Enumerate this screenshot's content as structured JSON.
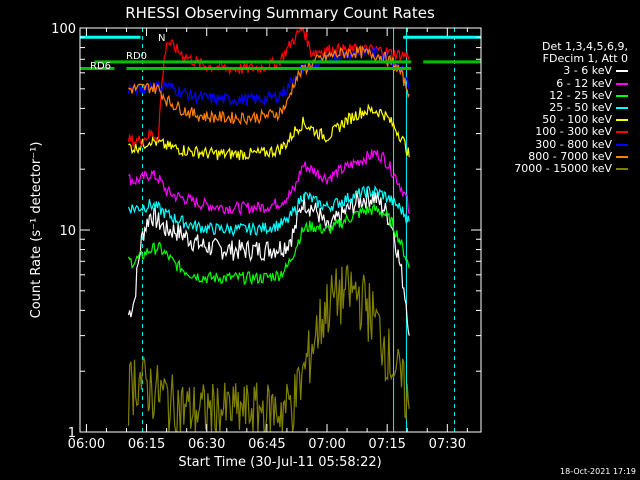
{
  "chart_data": {
    "type": "line",
    "title": "RHESSI Observing Summary Count Rates",
    "xlabel": "Start Time (30-Jul-11 05:58:22)",
    "ylabel": "Count Rate (s⁻¹ detector⁻¹)",
    "x_ticks": [
      "06:00",
      "06:15",
      "06:30",
      "06:45",
      "07:00",
      "07:15",
      "07:30"
    ],
    "x_tick_minutes": [
      0,
      15,
      30,
      45,
      60,
      75,
      90
    ],
    "xlim_minutes": [
      -1.6,
      98.4
    ],
    "y_ticks": [
      "1",
      "10",
      "100"
    ],
    "y_tick_values": [
      1,
      10,
      100
    ],
    "ylim": [
      1,
      100
    ],
    "y_scale": "log",
    "legend_header": [
      "Det 1,3,4,5,6,9,",
      "FDecim 1, Att 0"
    ],
    "series": [
      {
        "name": "3 - 6 keV",
        "color": "#ffffff",
        "x": [
          10.5,
          12,
          14,
          16,
          18,
          20,
          22,
          24,
          26,
          28,
          30,
          33,
          36,
          40,
          44,
          48,
          50,
          52,
          54,
          56,
          58,
          60,
          62,
          64,
          66,
          68,
          70,
          72,
          74,
          76,
          78,
          80,
          80.5
        ],
        "y": [
          3.8,
          4.5,
          9.5,
          12,
          11,
          10,
          10,
          9.5,
          9,
          8.5,
          8.3,
          8.1,
          8.0,
          8.0,
          8.0,
          8.2,
          8.5,
          10,
          14,
          13,
          12,
          10,
          11,
          12,
          13,
          14,
          14.5,
          14.5,
          13,
          11,
          7,
          4,
          3
        ]
      },
      {
        "name": "6 - 12 keV",
        "color": "#ff00ff",
        "x": [
          10.5,
          12,
          14,
          16,
          18,
          20,
          22,
          24,
          26,
          28,
          30,
          33,
          36,
          40,
          44,
          48,
          50,
          52,
          54,
          56,
          58,
          60,
          62,
          64,
          66,
          68,
          70,
          72,
          74,
          76,
          78,
          80,
          80.5
        ],
        "y": [
          18,
          17.5,
          18,
          19,
          18,
          15.5,
          14.8,
          14.4,
          14,
          13.6,
          13.3,
          13,
          12.9,
          12.9,
          13,
          13.6,
          14.5,
          16,
          21,
          20,
          19,
          18,
          19,
          20,
          21,
          22,
          23,
          24,
          23,
          20,
          17,
          14,
          12
        ]
      },
      {
        "name": "12 - 25 keV",
        "color": "#00ff00",
        "x": [
          10.5,
          12,
          14,
          16,
          18,
          20,
          22,
          24,
          26,
          28,
          30,
          33,
          36,
          40,
          44,
          48,
          50,
          52,
          54,
          56,
          58,
          60,
          62,
          64,
          66,
          68,
          70,
          72,
          74,
          76,
          78,
          80,
          80.5
        ],
        "y": [
          7,
          7,
          7.5,
          8,
          8.2,
          7.5,
          6.8,
          6.4,
          6.1,
          5.9,
          5.8,
          5.8,
          5.8,
          5.8,
          5.8,
          6.0,
          6.5,
          8,
          10,
          10.5,
          10.2,
          10,
          10.4,
          11,
          11.6,
          12.1,
          12.5,
          12.6,
          12.2,
          11,
          9,
          7,
          6.5
        ]
      },
      {
        "name": "25 - 50 keV",
        "color": "#00ffff",
        "x": [
          10.5,
          12,
          14,
          16,
          18,
          20,
          22,
          24,
          26,
          28,
          30,
          33,
          36,
          40,
          44,
          48,
          50,
          52,
          54,
          56,
          58,
          60,
          62,
          64,
          66,
          68,
          70,
          72,
          74,
          76,
          78,
          80,
          80.5
        ],
        "y": [
          13,
          12.8,
          13,
          13.4,
          12.8,
          12,
          11.4,
          11,
          10.6,
          10.4,
          10.2,
          10.1,
          10.1,
          10.1,
          10.2,
          10.6,
          11,
          12.5,
          15,
          14.3,
          13.5,
          13,
          13.5,
          14,
          14.6,
          15.1,
          15.5,
          15.5,
          15,
          14,
          13,
          11.5,
          11
        ]
      },
      {
        "name": "50 - 100 keV",
        "color": "#ffff00",
        "x": [
          10.5,
          12,
          14,
          16,
          18,
          20,
          22,
          24,
          26,
          28,
          30,
          33,
          36,
          40,
          44,
          48,
          50,
          52,
          54,
          56,
          58,
          60,
          62,
          64,
          66,
          68,
          70,
          72,
          74,
          76,
          78,
          80,
          80.5
        ],
        "y": [
          26,
          25.5,
          26.5,
          28,
          27,
          26,
          25.5,
          25,
          24.5,
          24.3,
          24,
          23.8,
          23.8,
          23.8,
          24,
          25,
          27,
          31,
          34,
          32,
          30,
          29,
          31,
          34,
          36,
          38,
          39,
          39,
          38,
          34,
          30,
          25,
          23
        ]
      },
      {
        "name": "100 - 300 keV",
        "color": "#ff0000",
        "x": [
          10.5,
          12,
          14,
          16,
          18,
          20,
          22,
          24,
          26,
          28,
          30,
          33,
          36,
          40,
          44,
          48,
          50,
          52,
          54,
          56,
          58,
          60,
          62,
          64,
          66,
          68,
          70,
          72,
          74,
          76,
          78,
          80,
          80.5
        ],
        "y": [
          28,
          27.5,
          28,
          30,
          29,
          86,
          80,
          74,
          70,
          67,
          65,
          64,
          63,
          63,
          64,
          68,
          78,
          90,
          100,
          76,
          77,
          78,
          78,
          78,
          78,
          78,
          78,
          78,
          77,
          75,
          74,
          73,
          72
        ]
      },
      {
        "name": "300 - 800 keV",
        "color": "#0000ff",
        "x": [
          10.5,
          12,
          14,
          16,
          18,
          20,
          22,
          24,
          26,
          28,
          30,
          33,
          36,
          40,
          44,
          48,
          50,
          52,
          54,
          56,
          58,
          60,
          62,
          64,
          66,
          68,
          70,
          72,
          74,
          76,
          78,
          80,
          80.5
        ],
        "y": [
          50,
          49.5,
          50,
          52,
          51,
          52,
          50,
          48,
          46.5,
          45.5,
          45,
          44.5,
          44.3,
          44.3,
          44.5,
          46,
          50,
          58,
          63,
          64,
          66,
          70,
          72,
          74,
          75,
          76,
          76,
          75,
          74,
          70,
          66,
          55,
          50
        ]
      },
      {
        "name": "800 - 7000 keV",
        "color": "#ff8000",
        "x": [
          10.5,
          12,
          14,
          16,
          18,
          20,
          22,
          24,
          26,
          28,
          30,
          33,
          36,
          40,
          44,
          48,
          50,
          52,
          54,
          56,
          58,
          60,
          62,
          64,
          66,
          68,
          70,
          72,
          74,
          76,
          78,
          80,
          80.5
        ],
        "y": [
          50,
          50,
          50.5,
          51,
          50,
          44,
          41.5,
          39.5,
          38,
          37,
          36.5,
          36.2,
          36,
          36,
          36.5,
          38,
          42,
          55,
          62,
          66,
          70,
          72,
          74,
          75,
          76,
          76,
          75,
          74,
          72,
          68,
          62,
          50,
          47
        ]
      },
      {
        "name": "7000 - 15000 keV",
        "color": "#808000",
        "x": [
          10.5,
          12,
          14,
          16,
          18,
          20,
          22,
          24,
          26,
          28,
          30,
          33,
          36,
          40,
          44,
          48,
          50,
          52,
          54,
          56,
          58,
          60,
          62,
          64,
          66,
          68,
          70,
          72,
          74,
          76,
          78,
          80,
          80.5
        ],
        "y": [
          1.6,
          1.9,
          1.8,
          1.7,
          1.6,
          1.5,
          1.4,
          1.35,
          1.3,
          1.3,
          1.3,
          1.3,
          1.3,
          1.3,
          1.3,
          1.3,
          1.35,
          1.5,
          1.9,
          2.6,
          3.4,
          4.3,
          4.8,
          5,
          5,
          4.8,
          4.4,
          3.6,
          2.9,
          2.3,
          1.9,
          1.5,
          1.3
        ]
      }
    ],
    "markers": [
      {
        "label": "N",
        "color": "#00ffff",
        "y": 90,
        "segments": [
          [
            -1.6,
            13.5
          ],
          [
            79,
            98.4
          ]
        ]
      },
      {
        "label": "RD0",
        "color": "#00c000",
        "y": 68,
        "segments": [
          [
            2,
            81
          ]
        ]
      },
      {
        "label": "RD6",
        "color": "#00c000",
        "y": 63,
        "segments": [
          [
            -1.6,
            7
          ],
          [
            10,
            81
          ]
        ]
      },
      {
        "label": "",
        "color": "#00c000",
        "y": 68,
        "segments": [
          [
            84,
            98.4
          ]
        ]
      }
    ],
    "vlines": [
      {
        "x": 14,
        "color": "#00ffff",
        "dashed": true
      },
      {
        "x": 76.6,
        "color": "#00ffff",
        "dashed": false
      },
      {
        "x": 79.8,
        "color": "#00ffff",
        "dashed": false
      },
      {
        "x": 91.8,
        "color": "#00ffff",
        "dashed": true
      }
    ]
  },
  "footer_timestamp": "18-Oct-2021 17:19"
}
